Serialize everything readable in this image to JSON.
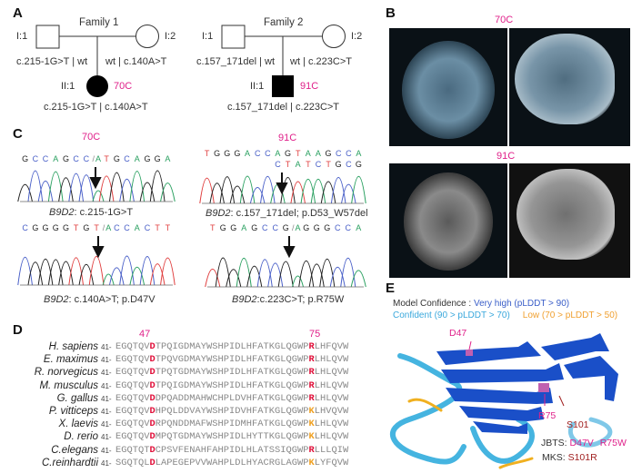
{
  "panels": {
    "a": "A",
    "b": "B",
    "c": "C",
    "d": "D",
    "e": "E"
  },
  "pedigree": {
    "f1": {
      "title": "Family 1",
      "i1": "I:1",
      "i2": "I:2",
      "ii1": "II:1",
      "father": "c.215-1G>T | wt",
      "mother": "wt | c.140A>T",
      "child": "c.215-1G>T | c.140A>T",
      "patient": "70C"
    },
    "f2": {
      "title": "Family 2",
      "i1": "I:1",
      "i2": "I:2",
      "ii1": "II:1",
      "father": "c.157_171del | wt",
      "mother": "wt | c.223C>T",
      "child": "c.157_171del | c.223C>T",
      "patient": "91C"
    }
  },
  "mri": {
    "top": "70C",
    "bottom": "91C"
  },
  "sanger": {
    "title70": "70C",
    "title91": "91C",
    "traces": [
      {
        "seq": "GCCAGCC/ATGCAGGA",
        "gene": "B9D2",
        "caption": ": c.215-1G>T"
      },
      {
        "seq": "TGGGACCAGTAAGCCA",
        "seq2": "CTATCTGCG",
        "gene": "B9D2",
        "caption": ": c.157_171del; p.D53_W57del"
      },
      {
        "seq": "CGGGGTGT/ACCACTT",
        "gene": "B9D2",
        "caption": ": c.140A>T; p.D47V"
      },
      {
        "seq": "TGGAGCCG/AGGGCCA",
        "gene": "B9D2",
        "caption": ":c.223C>T; p.R75W"
      }
    ],
    "base_colors": {
      "A": "#2aa060",
      "C": "#4a60c8",
      "G": "#222222",
      "T": "#e04040"
    }
  },
  "alignment": {
    "pos1": "47",
    "pos2": "75",
    "start": "41-",
    "rows": [
      {
        "species": "H. sapiens",
        "seq": "EGQTQVDTPQIGDMAYWSHPIDLHFATKGLQGWPRLHFQVW"
      },
      {
        "species": "E. maximus",
        "seq": "EGQTQVDTPQVGDMAYWSHPIDLHFATKGLQGWPRLHLQVW"
      },
      {
        "species": "R. norvegicus",
        "seq": "EGQTQVDTPQTGDMAYWSHPIDLHFATKGLQGWPRLHLQVW"
      },
      {
        "species": "M. musculus",
        "seq": "EGQTQVDTPQIGDMAYWSHPIDLHFATKGLQGWPRLHLQVW"
      },
      {
        "species": "G. gallus",
        "seq": "EGQTQVDDPQADDMAHWCHPLDVHFATKGLQGWPRLHLQVW"
      },
      {
        "species": "P. vitticeps",
        "seq": "EGQTQVDHPQLDDVAYWSHPIDVHFATKGLQGWPKLHVQVW"
      },
      {
        "species": "X. laevis",
        "seq": "EGQTQVDRPQNDDMAFWSHPIDMHFATKGLQGWPKLHLQVW"
      },
      {
        "species": "D. rerio",
        "seq": "EGQTQVDMPQTGDMAYWSHPIDLHYTTKGLQGWPKLHLQVW"
      },
      {
        "species": "C.elegans",
        "seq": "EGQTQTDCPSVFENAHFAHPIDLHLATSSIQGWPRLLLQIW"
      },
      {
        "species": "C.reinhardtii",
        "seq": "SGQTQLDLAPEGEPVVWAHPLDLHYACRGLAGWPKLYFQVW"
      }
    ]
  },
  "structure": {
    "legend_label": "Model Confidence : ",
    "very_high": "Very high (pLDDT > 90)",
    "confident": "Confident (90 > pLDDT > 70)",
    "low": "Low (70 > pLDDT > 50)",
    "d47": "D47",
    "r75": "R75",
    "s101": "S101",
    "jbts_label": "JBTS: ",
    "jbts1": "D47V",
    "jbts2": "R75W",
    "mks_label": "MKS: ",
    "mks1": "S101R",
    "colors": {
      "very_high": "#1a4fc8",
      "confident": "#45b4e0",
      "low": "#f0b020",
      "mutation": "#e0208a",
      "mks": "#a02020"
    }
  }
}
